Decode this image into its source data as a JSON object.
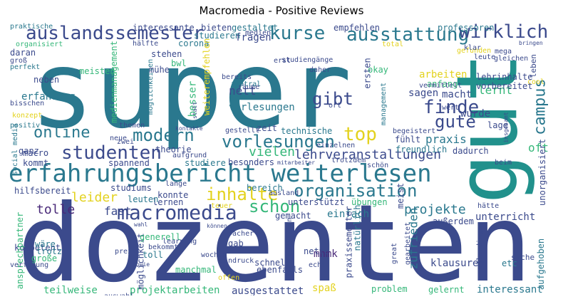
{
  "title": "Macromedia - Positive Reviews",
  "palette": {
    "navy": "#3b4a8c",
    "teal": "#2a788e",
    "green": "#35b779",
    "yellow": "#e3d21e",
    "purple": "#482878",
    "lime": "#90d743",
    "cyan": "#21918c",
    "dark": "#440154"
  },
  "words": [
    {
      "text": "super",
      "color": "teal"
    },
    {
      "text": "dozenten",
      "color": "navy"
    },
    {
      "text": "gut",
      "color": "cyan"
    },
    {
      "text": "erfahrungsbericht weiterlesen",
      "color": "teal"
    },
    {
      "text": "auslandssemester",
      "color": "navy"
    },
    {
      "text": "kurse",
      "color": "teal"
    },
    {
      "text": "ausstattung",
      "color": "teal"
    },
    {
      "text": "wirklich",
      "color": "navy"
    },
    {
      "text": "macromedia",
      "color": "navy"
    },
    {
      "text": "studenten",
      "color": "navy"
    },
    {
      "text": "organisation",
      "color": "teal"
    },
    {
      "text": "vorlesungen",
      "color": "teal"
    },
    {
      "text": "top",
      "color": "yellow"
    },
    {
      "text": "gibt",
      "color": "navy"
    },
    {
      "text": "finde",
      "color": "navy"
    },
    {
      "text": "gute",
      "color": "navy"
    },
    {
      "text": "campus",
      "color": "teal"
    },
    {
      "text": "online",
      "color": "teal"
    },
    {
      "text": "modern",
      "color": "teal"
    },
    {
      "text": "inhalte",
      "color": "yellow"
    },
    {
      "text": "schon",
      "color": "green"
    },
    {
      "text": "projekte",
      "color": "teal"
    },
    {
      "text": "lehrveranstaltungen",
      "color": "navy"
    },
    {
      "text": "vielen",
      "color": "green"
    },
    {
      "text": "leider",
      "color": "yellow"
    },
    {
      "text": "tolle",
      "color": "purple"
    },
    {
      "text": "fast",
      "color": "navy"
    },
    {
      "text": "praxis",
      "color": "teal"
    },
    {
      "text": "oft",
      "color": "green"
    },
    {
      "text": "zufrieden",
      "color": "teal"
    },
    {
      "text": "interessant",
      "color": "teal"
    },
    {
      "text": "nett",
      "color": "navy"
    },
    {
      "text": "lernt",
      "color": "green"
    },
    {
      "text": "arbeiten",
      "color": "yellow"
    },
    {
      "text": "erfahrung",
      "color": "teal"
    },
    {
      "text": "macht",
      "color": "navy"
    },
    {
      "text": "sagen",
      "color": "navy"
    },
    {
      "text": "wurde",
      "color": "navy"
    },
    {
      "text": "einfach",
      "color": "teal"
    },
    {
      "text": "unterricht",
      "color": "navy"
    },
    {
      "text": "klausuren",
      "color": "navy"
    },
    {
      "text": "teilweise",
      "color": "green"
    },
    {
      "text": "projektarbeiten",
      "color": "green"
    },
    {
      "text": "ausgestattet",
      "color": "navy"
    },
    {
      "text": "spaß",
      "color": "yellow"
    },
    {
      "text": "mhmk",
      "color": "purple"
    },
    {
      "text": "besser",
      "color": "green"
    },
    {
      "text": "meisten",
      "color": "green"
    },
    {
      "text": "fragen",
      "color": "navy"
    },
    {
      "text": "gestaltet",
      "color": "teal"
    },
    {
      "text": "empfehlen",
      "color": "navy"
    },
    {
      "text": "professoren",
      "color": "teal"
    },
    {
      "text": "interessante",
      "color": "navy"
    },
    {
      "text": "bieten",
      "color": "navy"
    },
    {
      "text": "corona",
      "color": "teal"
    },
    {
      "text": "studieren",
      "color": "teal"
    },
    {
      "text": "stehen",
      "color": "navy"
    },
    {
      "text": "bwl",
      "color": "green"
    },
    {
      "text": "mühe",
      "color": "navy"
    },
    {
      "text": "medienmanagement",
      "color": "green"
    },
    {
      "text": "weiterempfehlen",
      "color": "yellow"
    },
    {
      "text": "vorlesungen",
      "color": "teal"
    },
    {
      "text": "hilfsbereit",
      "color": "navy"
    },
    {
      "text": "kompetent",
      "color": "navy"
    },
    {
      "text": "ganz",
      "color": "navy"
    },
    {
      "text": "macro",
      "color": "navy"
    },
    {
      "text": "kommt",
      "color": "navy"
    },
    {
      "text": "spannend",
      "color": "navy"
    },
    {
      "text": "theorie",
      "color": "navy"
    },
    {
      "text": "studiere",
      "color": "teal"
    },
    {
      "text": "studiums",
      "color": "navy"
    },
    {
      "text": "konnte",
      "color": "navy"
    },
    {
      "text": "lernen",
      "color": "navy"
    },
    {
      "text": "leuten",
      "color": "teal"
    },
    {
      "text": "besonders",
      "color": "navy"
    },
    {
      "text": "bereich",
      "color": "teal"
    },
    {
      "text": "unterstützt",
      "color": "navy"
    },
    {
      "text": "übungen",
      "color": "green"
    },
    {
      "text": "gemacht",
      "color": "navy"
    },
    {
      "text": "technische",
      "color": "teal"
    },
    {
      "text": "zeit",
      "color": "navy"
    },
    {
      "text": "fühlt",
      "color": "navy"
    },
    {
      "text": "freundlich",
      "color": "teal"
    },
    {
      "text": "dadurch",
      "color": "navy"
    },
    {
      "text": "lehrinhalte",
      "color": "navy"
    },
    {
      "text": "vorbereitet",
      "color": "navy"
    },
    {
      "text": "anfang",
      "color": "green"
    },
    {
      "text": "okay",
      "color": "green"
    },
    {
      "text": "ersten",
      "color": "navy"
    },
    {
      "text": "räume",
      "color": "navy"
    },
    {
      "text": "bereits",
      "color": "navy"
    },
    {
      "text": "zentral",
      "color": "teal"
    },
    {
      "text": "lage",
      "color": "navy"
    },
    {
      "text": "leben",
      "color": "navy"
    },
    {
      "text": "unorganisiert",
      "color": "navy"
    },
    {
      "text": "möglichkeiten",
      "color": "teal"
    },
    {
      "text": "praxissemester",
      "color": "navy"
    },
    {
      "text": "natürlich",
      "color": "teal"
    },
    {
      "text": "problem",
      "color": "green"
    },
    {
      "text": "gelernt",
      "color": "green"
    },
    {
      "text": "schnell",
      "color": "navy"
    },
    {
      "text": "ebenfalls",
      "color": "navy"
    },
    {
      "text": "nette",
      "color": "navy"
    },
    {
      "text": "gab",
      "color": "navy"
    },
    {
      "text": "manchmal",
      "color": "green"
    },
    {
      "text": "große",
      "color": "green"
    },
    {
      "text": "wäre",
      "color": "teal"
    },
    {
      "text": "trotz",
      "color": "teal"
    },
    {
      "text": "toll",
      "color": "teal"
    },
    {
      "text": "preis",
      "color": "navy"
    },
    {
      "text": "eindruck",
      "color": "navy"
    },
    {
      "text": "wochen",
      "color": "navy"
    },
    {
      "text": "auswahl",
      "color": "navy"
    },
    {
      "text": "sache",
      "color": "navy"
    },
    {
      "text": "etc",
      "color": "teal"
    },
    {
      "text": "aufgehoben",
      "color": "teal"
    },
    {
      "text": "ansprechpartner",
      "color": "green"
    },
    {
      "text": "möglichkeit",
      "color": "navy"
    },
    {
      "text": "generell",
      "color": "green"
    },
    {
      "text": "fächer",
      "color": "navy"
    },
    {
      "text": "offen",
      "color": "yellow"
    },
    {
      "text": "meist",
      "color": "navy"
    },
    {
      "text": "außerdem",
      "color": "navy"
    },
    {
      "text": "hätte",
      "color": "navy"
    },
    {
      "text": "beim",
      "color": "navy"
    },
    {
      "text": "gefunden",
      "color": "yellow"
    },
    {
      "text": "klar",
      "color": "navy"
    },
    {
      "text": "mega",
      "color": "navy"
    },
    {
      "text": "leute",
      "color": "navy"
    },
    {
      "text": "cool",
      "color": "yellow"
    },
    {
      "text": "praktische",
      "color": "teal"
    },
    {
      "text": "daran",
      "color": "navy"
    },
    {
      "text": "groß",
      "color": "navy"
    },
    {
      "text": "perfekt",
      "color": "teal"
    },
    {
      "text": "neben",
      "color": "navy"
    },
    {
      "text": "bisschen",
      "color": "navy"
    },
    {
      "text": "positiv",
      "color": "teal"
    },
    {
      "text": "social media",
      "color": "teal"
    },
    {
      "text": "zwei",
      "color": "navy"
    },
    {
      "text": "themen",
      "color": "navy"
    },
    {
      "text": "neue",
      "color": "navy"
    },
    {
      "text": "aufgrund",
      "color": "navy"
    },
    {
      "text": "management",
      "color": "teal"
    },
    {
      "text": "gestellt",
      "color": "navy"
    },
    {
      "text": "einzelnen",
      "color": "navy"
    },
    {
      "text": "trotzdem",
      "color": "navy"
    },
    {
      "text": "schön",
      "color": "navy"
    },
    {
      "text": "begeistert",
      "color": "navy"
    },
    {
      "text": "vermittelt",
      "color": "navy"
    },
    {
      "text": "wert",
      "color": "navy"
    },
    {
      "text": "daher",
      "color": "navy"
    },
    {
      "text": "ort",
      "color": "navy"
    },
    {
      "text": "studiengänge",
      "color": "navy"
    },
    {
      "text": "erst",
      "color": "navy"
    },
    {
      "text": "medien",
      "color": "navy"
    },
    {
      "text": "hälfte",
      "color": "navy"
    },
    {
      "text": "organisiert",
      "color": "green"
    },
    {
      "text": "konzept",
      "color": "yellow"
    },
    {
      "text": "verfügung",
      "color": "navy"
    },
    {
      "text": "ausland",
      "color": "navy"
    },
    {
      "text": "lange",
      "color": "navy"
    },
    {
      "text": "teuer",
      "color": "yellow"
    },
    {
      "text": "bekommt",
      "color": "navy"
    },
    {
      "text": "learning",
      "color": "navy"
    },
    {
      "text": "grundlagen",
      "color": "navy"
    },
    {
      "text": "echt",
      "color": "navy"
    },
    {
      "text": "great",
      "color": "navy"
    },
    {
      "text": "gearbeitet",
      "color": "navy"
    },
    {
      "text": "gleichen",
      "color": "navy"
    },
    {
      "text": "bringen",
      "color": "navy"
    },
    {
      "text": "insgesamt",
      "color": "navy"
    },
    {
      "text": "allerdings",
      "color": "navy"
    },
    {
      "text": "total",
      "color": "yellow"
    },
    {
      "text": "statt",
      "color": "navy"
    },
    {
      "text": "mitarbeiter",
      "color": "navy"
    },
    {
      "text": "können",
      "color": "navy"
    },
    {
      "text": "wahl",
      "color": "navy"
    },
    {
      "text": "sowie",
      "color": "navy"
    },
    {
      "text": "kontakte",
      "color": "navy"
    }
  ]
}
